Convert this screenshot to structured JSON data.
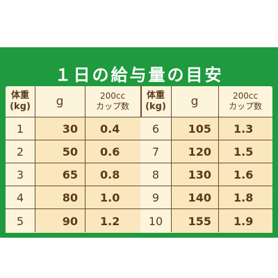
{
  "title": "１日の給与量の目安",
  "headers": {
    "weight_line1": "体重",
    "weight_line2": "(kg)",
    "grams": "g",
    "cups_line1": "200cc",
    "cups_line2": "カップ数"
  },
  "left_rows": [
    {
      "weight": "1",
      "grams": "30",
      "cups": "0.4"
    },
    {
      "weight": "2",
      "grams": "50",
      "cups": "0.6"
    },
    {
      "weight": "3",
      "grams": "65",
      "cups": "0.8"
    },
    {
      "weight": "4",
      "grams": "80",
      "cups": "1.0"
    },
    {
      "weight": "5",
      "grams": "90",
      "cups": "1.2"
    }
  ],
  "right_rows": [
    {
      "weight": "6",
      "grams": "105",
      "cups": "1.3"
    },
    {
      "weight": "7",
      "grams": "120",
      "cups": "1.5"
    },
    {
      "weight": "8",
      "grams": "130",
      "cups": "1.6"
    },
    {
      "weight": "9",
      "grams": "140",
      "cups": "1.8"
    },
    {
      "weight": "10",
      "grams": "155",
      "cups": "1.9"
    }
  ],
  "colors": {
    "panel_green": "#1f9a3e",
    "table_cream": "#fdf4dc",
    "value_cell": "#fbe7bd",
    "text_brown": "#5a3a1e",
    "border_brown": "#6b4a2f"
  }
}
